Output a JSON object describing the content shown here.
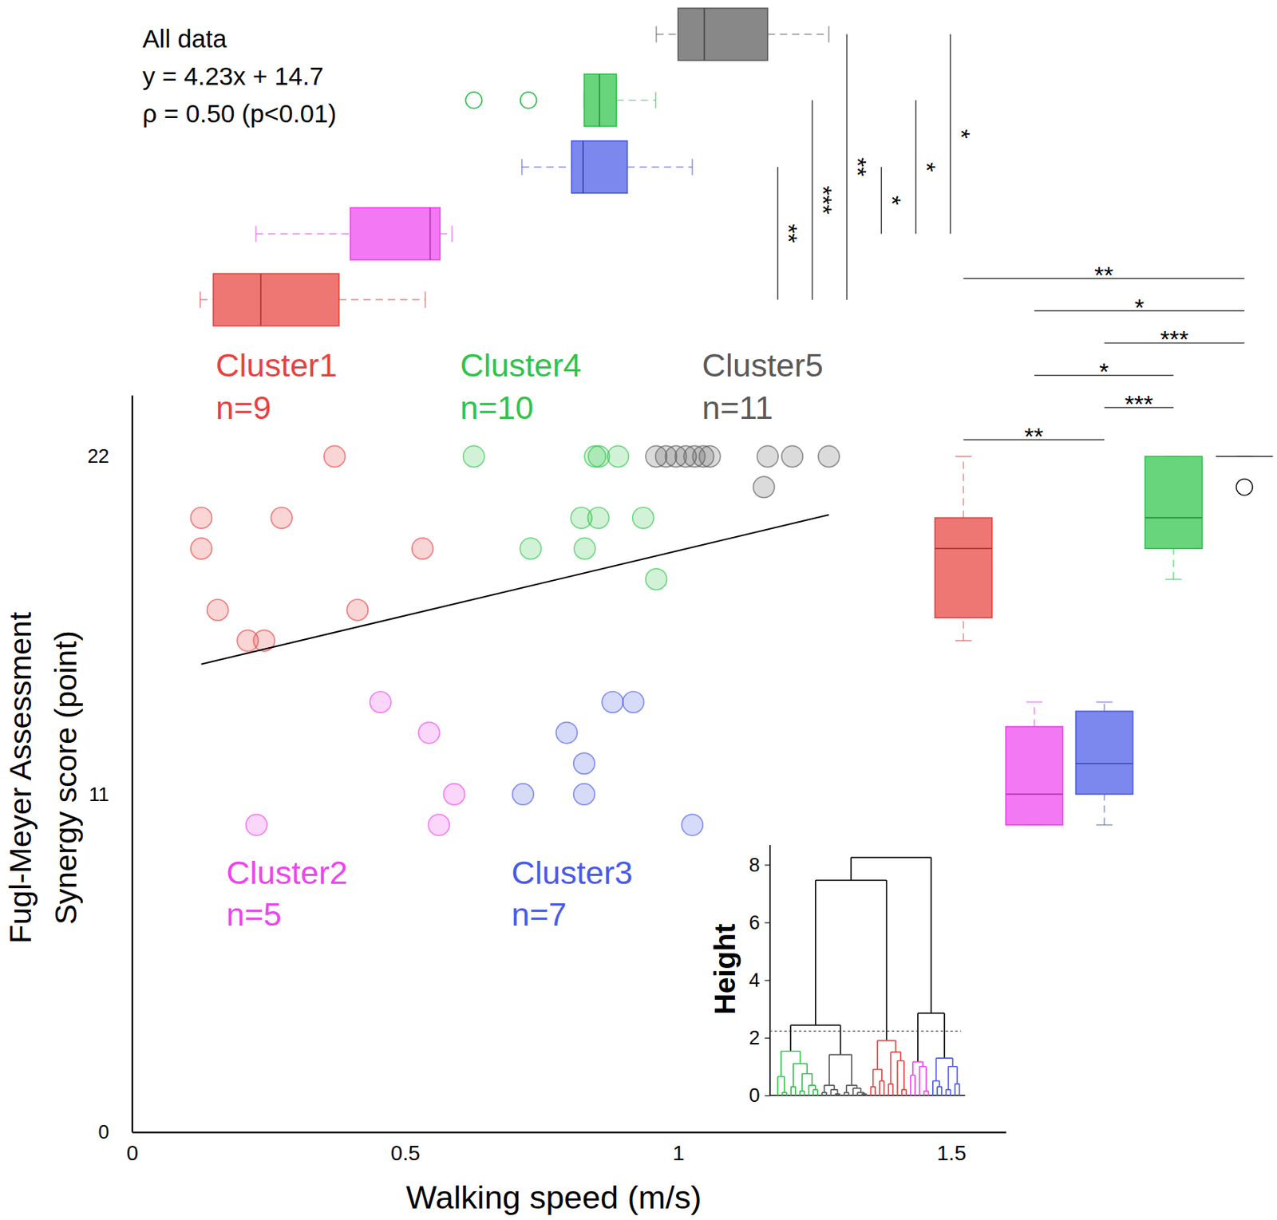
{
  "chart_data": {
    "type": "scatter",
    "x_label": "Walking speed (m/s)",
    "y_label": [
      "Fugl-Meyer Assessment",
      "Synergy score (point)"
    ],
    "xlim": [
      0,
      1.6
    ],
    "xticks": [
      0,
      0.5,
      1,
      1.5
    ],
    "ylim": [
      0,
      24
    ],
    "yticks": [
      0,
      11,
      22
    ],
    "annotation": [
      "All data",
      "y = 4.23x + 14.7",
      "ρ = 0.50 (p<0.01)"
    ],
    "regression": {
      "slope": 4.23,
      "intercept": 14.7,
      "x": [
        0.127,
        1.276
      ]
    },
    "series": [
      {
        "name": "Cluster1",
        "count_label": "n=9",
        "color": "#e8423f",
        "x": [
          0.371,
          0.127,
          0.274,
          0.127,
          0.532,
          0.157,
          0.413,
          0.212,
          0.242
        ],
        "values": [
          22,
          20,
          20,
          19,
          19,
          17,
          17,
          16,
          16
        ],
        "speed_box": {
          "whisker_low": 0.125,
          "q1": 0.149,
          "median": 0.236,
          "q3": 0.379,
          "whisker_high": 0.537,
          "outliers": []
        },
        "score_box": {
          "whisker_low": 16,
          "q1": 16.75,
          "median": 19,
          "q3": 20,
          "whisker_high": 22,
          "outliers": []
        }
      },
      {
        "name": "Cluster2",
        "count_label": "n=5",
        "color": "#ee44ee",
        "x": [
          0.455,
          0.544,
          0.59,
          0.228,
          0.562
        ],
        "values": [
          14,
          13,
          11,
          10,
          10
        ],
        "speed_box": {
          "whisker_low": 0.227,
          "q1": 0.4,
          "median": 0.546,
          "q3": 0.564,
          "whisker_high": 0.586,
          "outliers": []
        },
        "score_box": {
          "whisker_low": 10,
          "q1": 10,
          "median": 11,
          "q3": 13.2,
          "whisker_high": 14,
          "outliers": []
        }
      },
      {
        "name": "Cluster3",
        "count_label": "n=7",
        "color": "#4a5ae8",
        "x": [
          0.88,
          0.918,
          0.796,
          0.828,
          0.716,
          0.828,
          1.026
        ],
        "values": [
          14,
          14,
          13,
          12,
          11,
          11,
          10
        ],
        "speed_box": {
          "whisker_low": 0.714,
          "q1": 0.805,
          "median": 0.826,
          "q3": 0.907,
          "whisker_high": 1.026,
          "outliers": []
        },
        "score_box": {
          "whisker_low": 10,
          "q1": 11,
          "median": 12,
          "q3": 13.7,
          "whisker_high": 14,
          "outliers": []
        }
      },
      {
        "name": "Cluster4",
        "count_label": "n=10",
        "color": "#2ec44a",
        "x": [
          0.626,
          0.848,
          0.855,
          0.89,
          0.823,
          0.854,
          0.936,
          0.73,
          0.829,
          0.96
        ],
        "values": [
          22,
          22,
          22,
          22,
          20,
          20,
          20,
          19,
          19,
          18
        ],
        "speed_box": {
          "whisker_low": 0.828,
          "q1": 0.828,
          "median": 0.856,
          "q3": 0.887,
          "whisker_high": 0.959,
          "outliers": [
            0.626,
            0.726
          ]
        },
        "score_box": {
          "whisker_low": 18,
          "q1": 19,
          "median": 20,
          "q3": 22,
          "whisker_high": 22,
          "outliers": []
        }
      },
      {
        "name": "Cluster5",
        "count_label": "n=11",
        "color": "#5a5a5a",
        "x": [
          0.96,
          0.978,
          0.996,
          1.014,
          1.03,
          1.046,
          1.058,
          1.164,
          1.209,
          1.276,
          1.157
        ],
        "values": [
          22,
          22,
          22,
          22,
          22,
          22,
          22,
          22,
          22,
          22,
          21
        ],
        "speed_box": {
          "whisker_low": 0.96,
          "q1": 1.0,
          "median": 1.048,
          "q3": 1.164,
          "whisker_high": 1.276,
          "outliers": []
        },
        "score_box": {
          "whisker_low": 22,
          "q1": 22,
          "median": 22,
          "q3": 22,
          "whisker_high": 22,
          "outliers": [
            21
          ]
        }
      }
    ],
    "speed_tests": [
      {
        "a": 2,
        "b": 0,
        "label": "**"
      },
      {
        "a": 3,
        "b": 0,
        "label": "***"
      },
      {
        "a": 4,
        "b": 0,
        "label": "**"
      },
      {
        "a": 2,
        "b": 1,
        "label": "*"
      },
      {
        "a": 3,
        "b": 1,
        "label": "*"
      },
      {
        "a": 4,
        "b": 1,
        "label": "*"
      }
    ],
    "score_tests": [
      {
        "a": 0,
        "b": 4,
        "label": "**"
      },
      {
        "a": 1,
        "b": 4,
        "label": "*"
      },
      {
        "a": 2,
        "b": 4,
        "label": "***"
      },
      {
        "a": 1,
        "b": 3,
        "label": "*"
      },
      {
        "a": 2,
        "b": 3,
        "label": "***"
      },
      {
        "a": 0,
        "b": 2,
        "label": "**"
      }
    ],
    "dendrogram": {
      "y_label": "Height",
      "ylim": [
        0,
        8.7
      ],
      "yticks": [
        0,
        2,
        4,
        6,
        8
      ],
      "threshold": 2.23,
      "tree": {
        "height": 8.25,
        "children": [
          {
            "height": 7.46,
            "children": [
              {
                "height": 2.43,
                "children": [
                  {
                    "height": 1.53,
                    "cluster": 3,
                    "children": [
                      {
                        "height": 0.65,
                        "children": [
                          {
                            "height": 0
                          },
                          {
                            "height": 0.1,
                            "children": [
                              {
                                "height": 0
                              },
                              {
                                "height": 0
                              }
                            ]
                          }
                        ]
                      },
                      {
                        "height": 1.1,
                        "children": [
                          {
                            "height": 0.3,
                            "children": [
                              {
                                "height": 0
                              },
                              {
                                "height": 0
                              }
                            ]
                          },
                          {
                            "height": 0.75,
                            "children": [
                              {
                                "height": 0.15,
                                "children": [
                                  {
                                    "height": 0
                                  },
                                  {
                                    "height": 0
                                  }
                                ]
                              },
                              {
                                "height": 0.35,
                                "children": [
                                  {
                                    "height": 0
                                  },
                                  {
                                    "height": 0.2,
                                    "children": [
                                      {
                                        "height": 0
                                      },
                                      {
                                        "height": 0
                                      }
                                    ]
                                  }
                                ]
                              }
                            ]
                          }
                        ]
                      }
                    ]
                  },
                  {
                    "height": 1.41,
                    "cluster": 4,
                    "children": [
                      {
                        "height": 0.35,
                        "children": [
                          {
                            "height": 0.1,
                            "children": [
                              {
                                "height": 0
                              },
                              {
                                "height": 0
                              }
                            ]
                          },
                          {
                            "height": 0.2,
                            "children": [
                              {
                                "height": 0
                              },
                              {
                                "height": 0.05,
                                "children": [
                                  {
                                    "height": 0
                                  },
                                  {
                                    "height": 0
                                  }
                                ]
                              }
                            ]
                          }
                        ]
                      },
                      {
                        "height": 0.35,
                        "children": [
                          {
                            "height": 0.1,
                            "children": [
                              {
                                "height": 0
                              },
                              {
                                "height": 0
                              }
                            ]
                          },
                          {
                            "height": 0.25,
                            "children": [
                              {
                                "height": 0
                              },
                              {
                                "height": 0.1,
                                "children": [
                                  {
                                    "height": 0
                                  },
                                  {
                                    "height": 0.05,
                                    "children": [
                                      {
                                        "height": 0
                                      },
                                      {
                                        "height": 0
                                      }
                                    ]
                                  }
                                ]
                              }
                            ]
                          }
                        ]
                      }
                    ]
                  }
                ]
              },
              {
                "height": 1.9,
                "cluster": 0,
                "children": [
                  {
                    "height": 0.9,
                    "children": [
                      {
                        "height": 0.3,
                        "children": [
                          {
                            "height": 0
                          },
                          {
                            "height": 0
                          }
                        ]
                      },
                      {
                        "height": 0.5,
                        "children": [
                          {
                            "height": 0
                          },
                          {
                            "height": 0
                          }
                        ]
                      }
                    ]
                  },
                  {
                    "height": 1.5,
                    "children": [
                      {
                        "height": 0.4,
                        "children": [
                          {
                            "height": 0
                          },
                          {
                            "height": 0
                          }
                        ]
                      },
                      {
                        "height": 1.2,
                        "children": [
                          {
                            "height": 0
                          },
                          {
                            "height": 0.2,
                            "children": [
                              {
                                "height": 0
                              },
                              {
                                "height": 0
                              }
                            ]
                          }
                        ]
                      }
                    ]
                  }
                ]
              }
            ]
          },
          {
            "height": 2.85,
            "children": [
              {
                "height": 1.16,
                "cluster": 1,
                "children": [
                  {
                    "height": 0.7,
                    "children": [
                      {
                        "height": 0
                      },
                      {
                        "height": 0
                      }
                    ]
                  },
                  {
                    "height": 1.0,
                    "children": [
                      {
                        "height": 0
                      },
                      {
                        "height": 0.15,
                        "children": [
                          {
                            "height": 0
                          },
                          {
                            "height": 0
                          }
                        ]
                      }
                    ]
                  }
                ]
              },
              {
                "height": 1.29,
                "cluster": 2,
                "children": [
                  {
                    "height": 0.5,
                    "children": [
                      {
                        "height": 0
                      },
                      {
                        "height": 0.3,
                        "children": [
                          {
                            "height": 0
                          },
                          {
                            "height": 0
                          }
                        ]
                      }
                    ]
                  },
                  {
                    "height": 1.0,
                    "children": [
                      {
                        "height": 0.2,
                        "children": [
                          {
                            "height": 0
                          },
                          {
                            "height": 0
                          }
                        ]
                      },
                      {
                        "height": 0.4,
                        "children": [
                          {
                            "height": 0
                          },
                          {
                            "height": 0
                          }
                        ]
                      }
                    ]
                  }
                ]
              }
            ]
          }
        ]
      }
    }
  }
}
